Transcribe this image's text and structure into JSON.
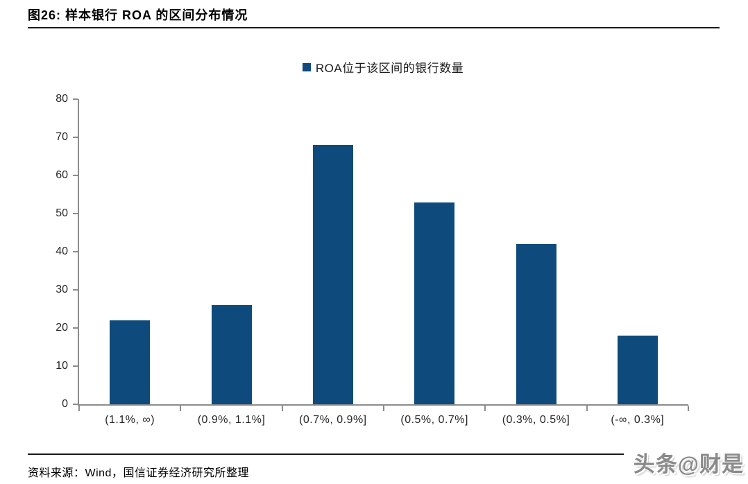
{
  "figure": {
    "title": "图26: 样本银行 ROA 的区间分布情况",
    "source": "资料来源：Wind，国信证券经济研究所整理",
    "watermark": "头条@财是"
  },
  "chart_data": {
    "type": "bar",
    "title": "",
    "legend": [
      "ROA位于该区间的银行数量"
    ],
    "legend_position": "top-center",
    "categories": [
      "(1.1%, ∞)",
      "(0.9%, 1.1%]",
      "(0.7%, 0.9%]",
      "(0.5%, 0.7%]",
      "(0.3%, 0.5%]",
      "(-∞, 0.3%]"
    ],
    "values": [
      22,
      26,
      68,
      53,
      42,
      18
    ],
    "xlabel": "",
    "ylabel": "",
    "ylim": [
      0,
      80
    ],
    "ytick_step": 10,
    "grid": false,
    "bar_color": "#0e4a7b",
    "axis_color": "#8c8c8c"
  }
}
